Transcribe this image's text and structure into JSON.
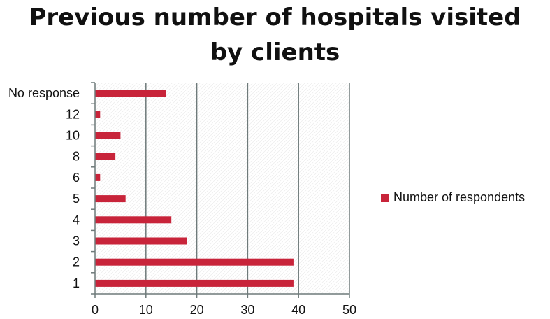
{
  "chart_data": {
    "type": "bar",
    "orientation": "horizontal",
    "title_lines": [
      "Previous number of hospitals visited",
      "by clients"
    ],
    "categories": [
      "1",
      "2",
      "3",
      "4",
      "5",
      "6",
      "8",
      "10",
      "12",
      "No response"
    ],
    "series": [
      {
        "name": "Number of respondents",
        "values": [
          39,
          39,
          18,
          15,
          6,
          1,
          4,
          5,
          1,
          14
        ]
      }
    ],
    "xlim": [
      0,
      50
    ],
    "xticks": [
      0,
      10,
      20,
      30,
      40,
      50
    ],
    "xlabel": "",
    "ylabel": "",
    "grid": true,
    "legend_position": "right",
    "bar_color": "#c8243a"
  }
}
